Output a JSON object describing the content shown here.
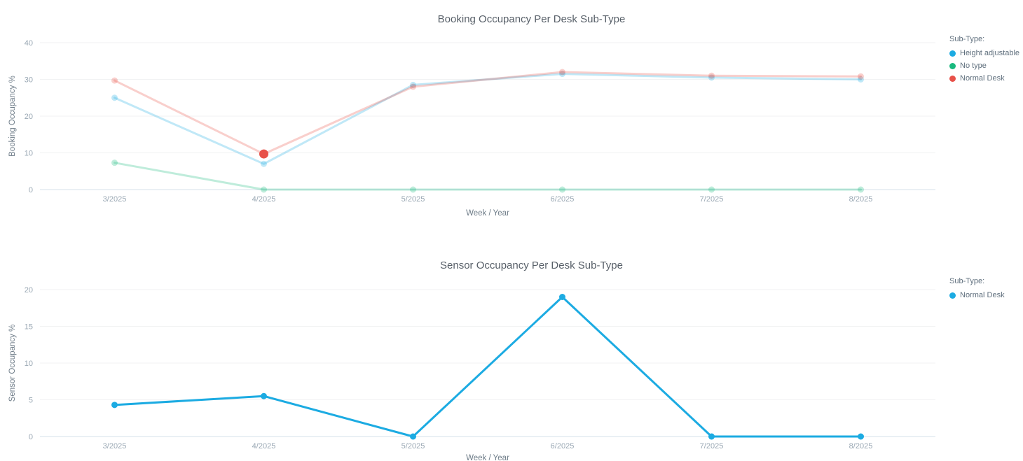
{
  "chart_data": [
    {
      "type": "line",
      "title": "Booking Occupancy Per Desk Sub-Type",
      "xlabel": "Week / Year",
      "ylabel": "Booking Occupancy %",
      "legend_title": "Sub-Type:",
      "legend_position": "right",
      "grid": true,
      "categories": [
        "3/2025",
        "4/2025",
        "5/2025",
        "6/2025",
        "7/2025",
        "8/2025"
      ],
      "yticks": [
        0,
        10,
        20,
        30,
        40
      ],
      "ylim": [
        0,
        40
      ],
      "series": [
        {
          "name": "Height adjustable",
          "color": "#1cabe2",
          "dimmed": true,
          "values": [
            25,
            7,
            28.5,
            31.5,
            30.5,
            30
          ]
        },
        {
          "name": "No type",
          "color": "#19b97e",
          "dimmed": true,
          "values": [
            7.3,
            0,
            0,
            0,
            0,
            0
          ]
        },
        {
          "name": "Normal Desk",
          "color": "#e85149",
          "dimmed": true,
          "values": [
            29.7,
            9.7,
            28,
            32,
            31,
            30.8
          ]
        }
      ],
      "highlight": {
        "series": 2,
        "point": 1
      }
    },
    {
      "type": "line",
      "title": "Sensor Occupancy Per Desk Sub-Type",
      "xlabel": "Week / Year",
      "ylabel": "Sensor Occupancy %",
      "legend_title": "Sub-Type:",
      "legend_position": "right",
      "grid": true,
      "categories": [
        "3/2025",
        "4/2025",
        "5/2025",
        "6/2025",
        "7/2025",
        "8/2025"
      ],
      "yticks": [
        0,
        5,
        10,
        15,
        20
      ],
      "ylim": [
        0,
        20
      ],
      "series": [
        {
          "name": "Normal Desk",
          "color": "#1cabe2",
          "dimmed": false,
          "values": [
            4.3,
            5.5,
            0,
            19,
            0,
            0
          ]
        }
      ]
    }
  ],
  "style_colors": {
    "grid_line": "#f1f2f3",
    "axis_line": "#d4e0ea",
    "tick_label": "#9aa8b4"
  }
}
